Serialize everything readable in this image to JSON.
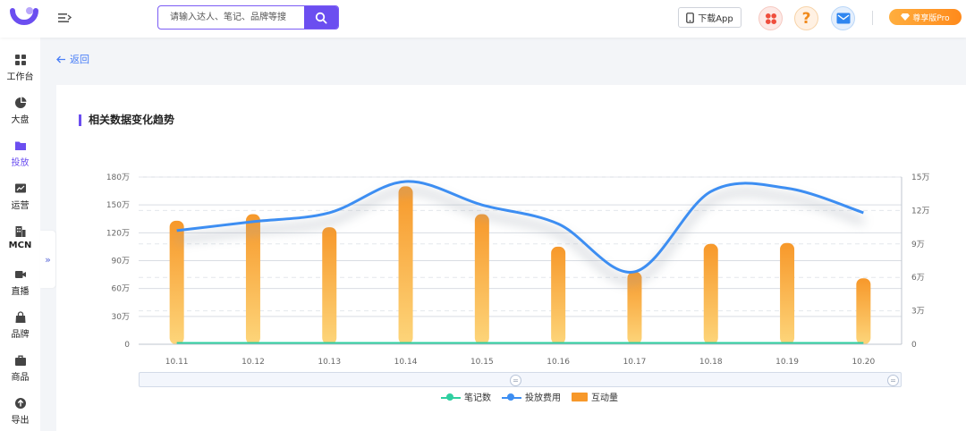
{
  "header": {
    "search_placeholder": "请输入达人、笔记、品牌等搜",
    "download_label": "下载App",
    "pro_label": "尊享版Pro"
  },
  "sidebar": {
    "items": [
      {
        "label": "工作台",
        "icon": "grid-icon"
      },
      {
        "label": "大盘",
        "icon": "pie-chart-icon"
      },
      {
        "label": "投放",
        "icon": "folder-icon",
        "active": true
      },
      {
        "label": "运营",
        "icon": "trend-chart-icon"
      },
      {
        "label": "MCN",
        "icon": "building-icon"
      },
      {
        "label": "直播",
        "icon": "video-camera-icon"
      },
      {
        "label": "品牌",
        "icon": "shopping-bag-icon"
      },
      {
        "label": "商品",
        "icon": "briefcase-icon"
      },
      {
        "label": "导出",
        "icon": "export-icon"
      }
    ],
    "collapse_glyph": "»"
  },
  "back_label": "返回",
  "section_title": "相关数据变化趋势",
  "colors": {
    "accent": "#6b4ef0",
    "bar_top": "#f7982a",
    "bar_bottom": "#fdd57a",
    "line_blue": "#3d8ef2",
    "line_green": "#2fcfa0"
  },
  "chart_data": {
    "type": "bar",
    "categories": [
      "10.11",
      "10.12",
      "10.13",
      "10.14",
      "10.15",
      "10.16",
      "10.17",
      "10.18",
      "10.19",
      "10.20"
    ],
    "left_axis": {
      "ticks": [
        "0",
        "30万",
        "60万",
        "90万",
        "120万",
        "150万",
        "180万"
      ],
      "ylim": [
        0,
        1800000
      ]
    },
    "right_axis": {
      "ticks": [
        "0",
        "3万",
        "6万",
        "9万",
        "12万",
        "15万"
      ],
      "ylim": [
        0,
        150000
      ]
    },
    "series": [
      {
        "name": "笔记数",
        "type": "line",
        "axis": "right",
        "values": [
          0,
          0,
          0,
          0,
          0,
          0,
          0,
          0,
          0,
          0
        ]
      },
      {
        "name": "投放费用",
        "type": "line",
        "axis": "right",
        "smooth": true,
        "values": [
          102000,
          110000,
          118000,
          146000,
          125000,
          108000,
          65000,
          137000,
          140000,
          118000
        ]
      },
      {
        "name": "互动量",
        "type": "bar",
        "axis": "left",
        "values": [
          1330000,
          1400000,
          1260000,
          1700000,
          1400000,
          1050000,
          780000,
          1080000,
          1090000,
          710000
        ]
      }
    ],
    "grid": true,
    "legend_position": "bottom"
  }
}
